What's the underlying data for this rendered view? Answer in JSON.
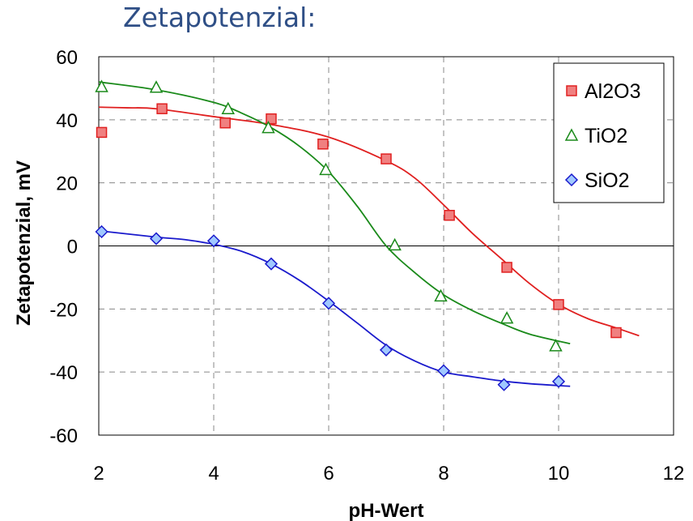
{
  "title": "Zetapotenzial:",
  "chart_data": {
    "type": "scatter",
    "title": "Zetapotenzial:",
    "xlabel": "pH-Wert",
    "ylabel": "Zetapotenzial, mV",
    "xlim": [
      2,
      12
    ],
    "ylim": [
      -60,
      60
    ],
    "xticks": [
      2,
      4,
      6,
      8,
      10,
      12
    ],
    "yticks": [
      60,
      40,
      20,
      0,
      -20,
      -40,
      -60
    ],
    "grid": true,
    "legend_position": "top-right",
    "series": [
      {
        "name": "Al2O3",
        "marker": "square",
        "color": "#e02020",
        "fill": "#f08080",
        "points": [
          [
            2.05,
            36
          ],
          [
            3.1,
            43.5
          ],
          [
            4.2,
            39
          ],
          [
            5.0,
            40.3
          ],
          [
            5.9,
            32.3
          ],
          [
            7.0,
            27.6
          ],
          [
            8.1,
            9.7
          ],
          [
            9.1,
            -6.8
          ],
          [
            10.0,
            -18.6
          ],
          [
            11.0,
            -27.5
          ]
        ],
        "fit": [
          [
            2,
            44
          ],
          [
            2.5,
            43.8
          ],
          [
            3,
            43.5
          ],
          [
            4,
            41
          ],
          [
            5,
            38.5
          ],
          [
            6,
            34.5
          ],
          [
            7,
            27
          ],
          [
            7.5,
            21.5
          ],
          [
            8,
            13
          ],
          [
            8.5,
            4
          ],
          [
            9,
            -4
          ],
          [
            9.5,
            -12
          ],
          [
            10,
            -18.5
          ],
          [
            10.5,
            -23
          ],
          [
            11,
            -26
          ],
          [
            11.4,
            -28.5
          ]
        ]
      },
      {
        "name": "TiO2",
        "marker": "triangle",
        "color": "#1a8a1a",
        "fill": "#ffffff",
        "points": [
          [
            2.05,
            50.5
          ],
          [
            3.0,
            50.3
          ],
          [
            4.25,
            43.5
          ],
          [
            4.95,
            37.5
          ],
          [
            5.95,
            24.2
          ],
          [
            7.15,
            0.3
          ],
          [
            7.95,
            -15.9
          ],
          [
            9.1,
            -22.9
          ],
          [
            9.95,
            -31.7
          ]
        ],
        "fit": [
          [
            2,
            52
          ],
          [
            3,
            49.5
          ],
          [
            4,
            45.5
          ],
          [
            4.5,
            42
          ],
          [
            5,
            37.5
          ],
          [
            5.5,
            31.5
          ],
          [
            6,
            23.5
          ],
          [
            6.5,
            12.5
          ],
          [
            7,
            0
          ],
          [
            7.5,
            -8.5
          ],
          [
            8,
            -15.5
          ],
          [
            8.5,
            -20.5
          ],
          [
            9,
            -24.5
          ],
          [
            9.5,
            -28
          ],
          [
            10.2,
            -31
          ]
        ]
      },
      {
        "name": "SiO2",
        "marker": "diamond",
        "color": "#1a1acc",
        "fill": "#a0c8ff",
        "points": [
          [
            2.05,
            4.5
          ],
          [
            3.0,
            2.3
          ],
          [
            4.0,
            1.6
          ],
          [
            5.0,
            -5.7
          ],
          [
            6.0,
            -18.2
          ],
          [
            7.0,
            -33
          ],
          [
            8.0,
            -39.6
          ],
          [
            9.05,
            -44
          ],
          [
            10.0,
            -43
          ]
        ],
        "fit": [
          [
            2,
            4.8
          ],
          [
            3,
            2.8
          ],
          [
            3.5,
            2
          ],
          [
            4,
            0.5
          ],
          [
            4.5,
            -1.8
          ],
          [
            5,
            -5.7
          ],
          [
            5.5,
            -11
          ],
          [
            6,
            -17.5
          ],
          [
            6.5,
            -24.5
          ],
          [
            7,
            -31.5
          ],
          [
            7.5,
            -36.5
          ],
          [
            8,
            -40
          ],
          [
            8.5,
            -41.5
          ],
          [
            9,
            -42.8
          ],
          [
            9.5,
            -43.7
          ],
          [
            10.2,
            -44.5
          ]
        ]
      }
    ]
  }
}
